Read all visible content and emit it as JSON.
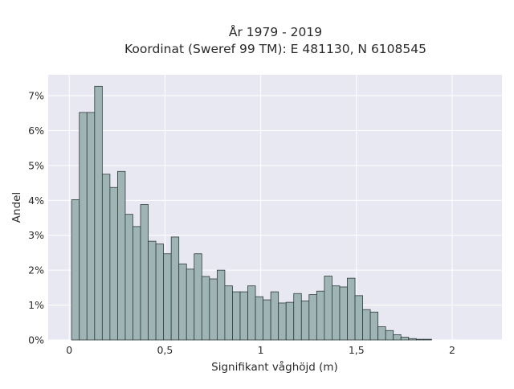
{
  "chart_data": {
    "type": "bar",
    "title_line1": "År 1979 - 2019",
    "title_line2": "Koordinat (Sweref 99 TM): E 481130, N 6108545",
    "xlabel": "Signifikant våghöjd (m)",
    "ylabel": "Andel",
    "xlim": [
      -0.11,
      2.26
    ],
    "ylim": [
      0,
      7.6
    ],
    "x_ticks": [
      0,
      0.5,
      1,
      1.5,
      2
    ],
    "x_tick_labels": [
      "0",
      "0,5",
      "1",
      "1,5",
      "2"
    ],
    "y_ticks": [
      0,
      1,
      2,
      3,
      4,
      5,
      6,
      7
    ],
    "y_tick_labels": [
      "0%",
      "1%",
      "2%",
      "3%",
      "4%",
      "5%",
      "6%",
      "7%"
    ],
    "bin_start": 0.0125,
    "bin_width": 0.04,
    "values": [
      4.02,
      6.52,
      6.52,
      7.27,
      4.75,
      4.37,
      4.83,
      3.6,
      3.25,
      3.88,
      2.83,
      2.75,
      2.47,
      2.95,
      2.18,
      2.03,
      2.47,
      1.82,
      1.75,
      2.0,
      1.55,
      1.38,
      1.38,
      1.55,
      1.24,
      1.15,
      1.38,
      1.06,
      1.08,
      1.33,
      1.12,
      1.3,
      1.4,
      1.83,
      1.55,
      1.52,
      1.77,
      1.27,
      0.87,
      0.8,
      0.38,
      0.27,
      0.15,
      0.08,
      0.04,
      0.02,
      0.02
    ],
    "grid": true,
    "legend": "none",
    "colors": {
      "bar_fill": "#9fb5b5",
      "bar_stroke": "#2e3a3a",
      "plot_bg": "#e8e8f2",
      "grid": "#ffffff"
    }
  }
}
